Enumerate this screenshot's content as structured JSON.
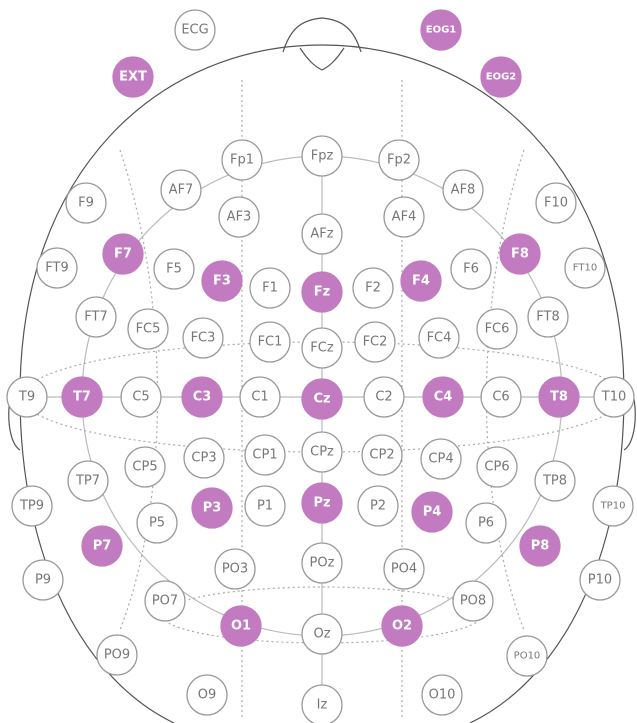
{
  "nodes": [
    {
      "label": "ECG",
      "selected": false
    },
    {
      "label": "EOG1",
      "selected": true
    },
    {
      "label": "EXT",
      "selected": true
    },
    {
      "label": "EOG2",
      "selected": true
    },
    {
      "label": "Fp1",
      "selected": false
    },
    {
      "label": "Fpz",
      "selected": false
    },
    {
      "label": "Fp2",
      "selected": false
    },
    {
      "label": "F9",
      "selected": false
    },
    {
      "label": "AF7",
      "selected": false
    },
    {
      "label": "AF8",
      "selected": false
    },
    {
      "label": "F10",
      "selected": false
    },
    {
      "label": "AF3",
      "selected": false
    },
    {
      "label": "AFz",
      "selected": false
    },
    {
      "label": "AF4",
      "selected": false
    },
    {
      "label": "F7",
      "selected": true
    },
    {
      "label": "F5",
      "selected": false
    },
    {
      "label": "F3",
      "selected": true
    },
    {
      "label": "F1",
      "selected": false
    },
    {
      "label": "Fz",
      "selected": true
    },
    {
      "label": "F2",
      "selected": false
    },
    {
      "label": "F4",
      "selected": true
    },
    {
      "label": "F6",
      "selected": false
    },
    {
      "label": "F8",
      "selected": true
    },
    {
      "label": "FT9",
      "selected": false
    },
    {
      "label": "FT10",
      "selected": false
    },
    {
      "label": "FT7",
      "selected": false
    },
    {
      "label": "FC5",
      "selected": false
    },
    {
      "label": "FC3",
      "selected": false
    },
    {
      "label": "FC1",
      "selected": false
    },
    {
      "label": "FCz",
      "selected": false
    },
    {
      "label": "FC2",
      "selected": false
    },
    {
      "label": "FC4",
      "selected": false
    },
    {
      "label": "FC6",
      "selected": false
    },
    {
      "label": "FT8",
      "selected": false
    },
    {
      "label": "T9",
      "selected": false
    },
    {
      "label": "T7",
      "selected": true
    },
    {
      "label": "C5",
      "selected": false
    },
    {
      "label": "C3",
      "selected": true
    },
    {
      "label": "C1",
      "selected": false
    },
    {
      "label": "Cz",
      "selected": true
    },
    {
      "label": "C2",
      "selected": false
    },
    {
      "label": "C4",
      "selected": true
    },
    {
      "label": "C6",
      "selected": false
    },
    {
      "label": "T8",
      "selected": true
    },
    {
      "label": "T10",
      "selected": false
    },
    {
      "label": "CP5",
      "selected": false
    },
    {
      "label": "CP3",
      "selected": false
    },
    {
      "label": "CP1",
      "selected": false
    },
    {
      "label": "CPz",
      "selected": false
    },
    {
      "label": "CP2",
      "selected": false
    },
    {
      "label": "CP4",
      "selected": false
    },
    {
      "label": "CP6",
      "selected": false
    },
    {
      "label": "TP7",
      "selected": false
    },
    {
      "label": "TP8",
      "selected": false
    },
    {
      "label": "TP9",
      "selected": false
    },
    {
      "label": "TP10",
      "selected": false
    },
    {
      "label": "P3",
      "selected": true
    },
    {
      "label": "P1",
      "selected": false
    },
    {
      "label": "Pz",
      "selected": true
    },
    {
      "label": "P2",
      "selected": false
    },
    {
      "label": "P4",
      "selected": true
    },
    {
      "label": "P5",
      "selected": false
    },
    {
      "label": "P6",
      "selected": false
    },
    {
      "label": "P7",
      "selected": true
    },
    {
      "label": "P8",
      "selected": true
    },
    {
      "label": "P9",
      "selected": false
    },
    {
      "label": "P10",
      "selected": false
    },
    {
      "label": "PO3",
      "selected": false
    },
    {
      "label": "POz",
      "selected": false
    },
    {
      "label": "PO4",
      "selected": false
    },
    {
      "label": "PO7",
      "selected": false
    },
    {
      "label": "PO8",
      "selected": false
    },
    {
      "label": "O1",
      "selected": true
    },
    {
      "label": "Oz",
      "selected": false
    },
    {
      "label": "O2",
      "selected": true
    },
    {
      "label": "PO9",
      "selected": false
    },
    {
      "label": "PO10",
      "selected": false
    },
    {
      "label": "O9",
      "selected": false
    },
    {
      "label": "Iz",
      "selected": false
    },
    {
      "label": "O10",
      "selected": false
    }
  ]
}
